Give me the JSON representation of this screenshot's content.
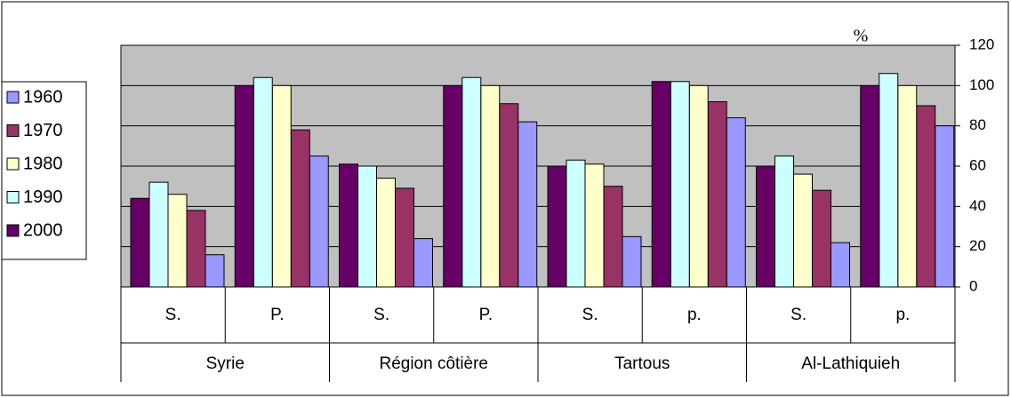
{
  "chart_data": {
    "type": "bar",
    "ylabel": "%",
    "categories": [
      "S.",
      "P.",
      "S.",
      "P.",
      "S.",
      "p.",
      "S.",
      "p."
    ],
    "groups": [
      "Syrie",
      "Région côtière",
      "Tartous",
      "Al-Lathiquieh"
    ],
    "series": [
      {
        "name": "1960",
        "color": "#9999ff",
        "values": [
          16,
          65,
          24,
          82,
          25,
          84,
          22,
          80
        ]
      },
      {
        "name": "1970",
        "color": "#993366",
        "values": [
          38,
          78,
          49,
          91,
          50,
          92,
          48,
          90
        ]
      },
      {
        "name": "1980",
        "color": "#ffffcc",
        "values": [
          46,
          100,
          54,
          100,
          61,
          100,
          56,
          100
        ]
      },
      {
        "name": "1990",
        "color": "#ccffff",
        "values": [
          52,
          104,
          60,
          104,
          63,
          102,
          65,
          106
        ]
      },
      {
        "name": "2000",
        "color": "#660066",
        "values": [
          44,
          100,
          61,
          100,
          60,
          102,
          60,
          100
        ]
      }
    ],
    "ylim": [
      0,
      120
    ],
    "yticks": [
      0,
      20,
      40,
      60,
      80,
      100,
      120
    ],
    "grid": true,
    "legend": "left"
  }
}
